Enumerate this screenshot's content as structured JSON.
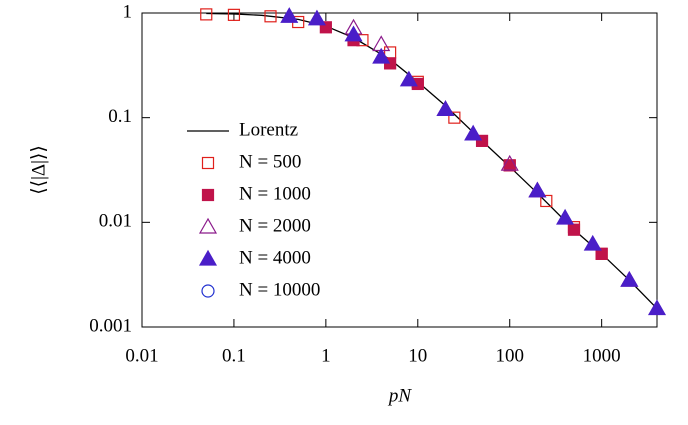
{
  "chart_data": {
    "type": "scatter",
    "x_label": "pN",
    "y_label": "⟨⟨|Δ|⟩⟩",
    "xlim": [
      0.01,
      4000
    ],
    "ylim": [
      0.001,
      1
    ],
    "log_x": true,
    "log_y": true,
    "xticks": [
      0.01,
      0.1,
      1,
      10,
      100,
      1000
    ],
    "yticks": [
      0.001,
      0.01,
      0.1,
      1
    ],
    "legend": "left",
    "series": [
      {
        "name": "Lorentz",
        "type": "line",
        "color": "#000000",
        "x": [
          0.05,
          0.1,
          0.2,
          0.5,
          1,
          2,
          5,
          10,
          20,
          50,
          100,
          200,
          500,
          1000,
          2000,
          4000
        ],
        "values": [
          0.99,
          0.98,
          0.95,
          0.87,
          0.75,
          0.58,
          0.36,
          0.22,
          0.13,
          0.06,
          0.034,
          0.019,
          0.0085,
          0.005,
          0.0028,
          0.0015
        ]
      },
      {
        "name": "N = 500",
        "type": "scatter",
        "marker": "square",
        "filled": false,
        "color": "#e0201b",
        "x": [
          0.05,
          0.1,
          0.25,
          0.5,
          2.5,
          5,
          10,
          25,
          100,
          250,
          500,
          1000
        ],
        "values": [
          0.97,
          0.96,
          0.93,
          0.82,
          0.55,
          0.42,
          0.22,
          0.1,
          0.035,
          0.016,
          0.009,
          0.005
        ]
      },
      {
        "name": "N = 1000",
        "type": "scatter",
        "marker": "square",
        "filled": true,
        "color": "#c0134a",
        "x": [
          1,
          2,
          5,
          10,
          50,
          100,
          500,
          1000
        ],
        "values": [
          0.73,
          0.55,
          0.33,
          0.21,
          0.06,
          0.035,
          0.0085,
          0.005
        ]
      },
      {
        "name": "N = 2000",
        "type": "scatter",
        "marker": "triangle",
        "filled": false,
        "color": "#8b1a8b",
        "x": [
          2,
          4,
          20,
          100,
          200,
          2000
        ],
        "values": [
          0.72,
          0.5,
          0.12,
          0.036,
          0.02,
          0.0028
        ]
      },
      {
        "name": "N = 4000",
        "type": "scatter",
        "marker": "triangle",
        "filled": true,
        "color": "#4a1ec8",
        "x": [
          0.4,
          0.8,
          2,
          4,
          8,
          20,
          40,
          200,
          400,
          800,
          2000,
          4000
        ],
        "values": [
          0.93,
          0.88,
          0.62,
          0.38,
          0.23,
          0.12,
          0.07,
          0.02,
          0.011,
          0.0062,
          0.0028,
          0.0015
        ]
      },
      {
        "name": "N = 10000",
        "type": "scatter",
        "marker": "circle",
        "filled": false,
        "color": "#2030d0",
        "x": [],
        "values": []
      }
    ]
  }
}
